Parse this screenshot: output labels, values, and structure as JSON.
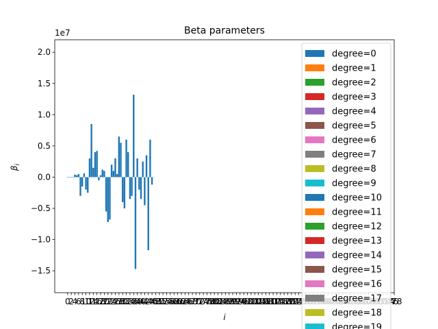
{
  "chart_data": {
    "type": "bar",
    "title": "Beta parameters",
    "xlabel": "i",
    "ylabel": "β",
    "ylabel_subscript": "i",
    "y_offset_text": "1e7",
    "y_scale": 10000000,
    "ylim": [
      -1.85,
      2.2
    ],
    "yticks": [
      -1.5,
      -1.0,
      -0.5,
      0.0,
      0.5,
      1.0,
      1.5,
      2.0
    ],
    "ytick_labels": [
      "−1.5",
      "−1.0",
      "−0.5",
      "0.0",
      "0.5",
      "1.0",
      "1.5",
      "2.0"
    ],
    "xlim": [
      -7,
      178
    ],
    "xtick_step": 2,
    "xtick_max": 178,
    "grid": false,
    "legend_position": "upper right",
    "series": [
      {
        "name": "degree=0",
        "color": "#1f77b4",
        "values": [
          0.0,
          0.0,
          0.0,
          0.0,
          0.04,
          0.03,
          0.05,
          -0.3,
          -0.15,
          0.06,
          -0.2,
          -0.25,
          0.3,
          0.85,
          0.15,
          0.4,
          0.42,
          -0.05,
          0.03,
          0.12,
          0.1,
          -0.55,
          -0.72,
          -0.68,
          0.2,
          0.1,
          0.3,
          0.05,
          0.65,
          0.55,
          -0.4,
          -0.5,
          0.6,
          0.4,
          -0.35,
          -0.3,
          1.32,
          -1.47,
          0.3,
          -0.2,
          -0.35,
          0.25,
          -0.45,
          0.35,
          -1.17,
          0.6,
          -0.12
        ]
      }
    ],
    "legend_entries": [
      {
        "name": "degree=0",
        "color": "#1f77b4"
      },
      {
        "name": "degree=1",
        "color": "#ff7f0e"
      },
      {
        "name": "degree=2",
        "color": "#2ca02c"
      },
      {
        "name": "degree=3",
        "color": "#d62728"
      },
      {
        "name": "degree=4",
        "color": "#9467bd"
      },
      {
        "name": "degree=5",
        "color": "#8c564b"
      },
      {
        "name": "degree=6",
        "color": "#e377c2"
      },
      {
        "name": "degree=7",
        "color": "#7f7f7f"
      },
      {
        "name": "degree=8",
        "color": "#bcbd22"
      },
      {
        "name": "degree=9",
        "color": "#17becf"
      },
      {
        "name": "degree=10",
        "color": "#1f77b4"
      },
      {
        "name": "degree=11",
        "color": "#ff7f0e"
      },
      {
        "name": "degree=12",
        "color": "#2ca02c"
      },
      {
        "name": "degree=13",
        "color": "#d62728"
      },
      {
        "name": "degree=14",
        "color": "#9467bd"
      },
      {
        "name": "degree=15",
        "color": "#8c564b"
      },
      {
        "name": "degree=16",
        "color": "#e377c2"
      },
      {
        "name": "degree=17",
        "color": "#7f7f7f"
      },
      {
        "name": "degree=18",
        "color": "#bcbd22"
      },
      {
        "name": "degree=19",
        "color": "#17becf"
      }
    ],
    "palette": [
      "#1f77b4",
      "#ff7f0e",
      "#2ca02c",
      "#d62728",
      "#9467bd",
      "#8c564b",
      "#e377c2",
      "#7f7f7f",
      "#bcbd22",
      "#17becf"
    ]
  }
}
